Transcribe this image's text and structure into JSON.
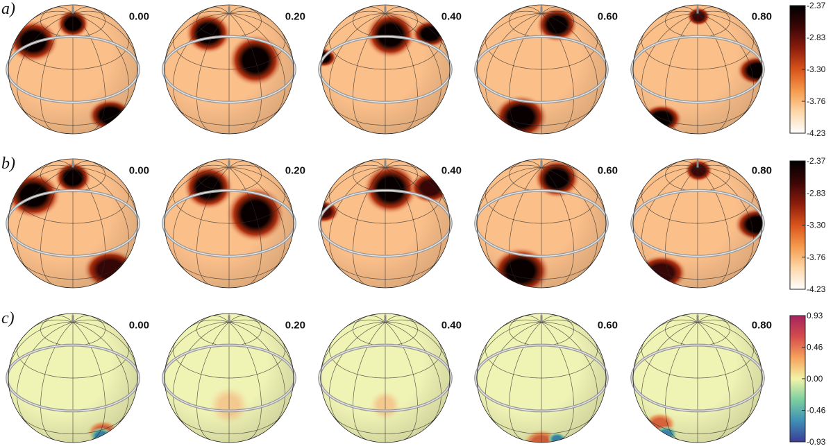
{
  "rows": [
    {
      "label": "a)",
      "kind": "temperature",
      "colorbar": {
        "max_label": "-2.37",
        "ticks": [
          "-2.83",
          "-3.30",
          "-3.76"
        ],
        "min_label": "-4.23",
        "colors": [
          "#ffffff",
          "#fdd7a8",
          "#f59a4c",
          "#d9541a",
          "#8c1c0c",
          "#3a0606",
          "#000000"
        ]
      },
      "globes": [
        {
          "phase": "0.00",
          "spots": [
            {
              "lon": -60,
              "lat": 45,
              "r": 22,
              "k": 1.0
            },
            {
              "lon": 40,
              "lat": -25,
              "r": 20,
              "k": 1.0
            },
            {
              "lon": 0,
              "lat": 75,
              "r": 14,
              "k": 1.0
            }
          ]
        },
        {
          "phase": "0.20",
          "spots": [
            {
              "lon": -40,
              "lat": 60,
              "r": 20,
              "k": 1.0
            },
            {
              "lon": 30,
              "lat": 35,
              "r": 24,
              "k": 1.0
            }
          ]
        },
        {
          "phase": "0.40",
          "spots": [
            {
              "lon": 10,
              "lat": 62,
              "r": 22,
              "k": 1.0
            },
            {
              "lon": 80,
              "lat": 45,
              "r": 16,
              "k": 1.0
            },
            {
              "lon": -85,
              "lat": 15,
              "r": 12,
              "k": 1.0
            }
          ]
        },
        {
          "phase": "0.60",
          "spots": [
            {
              "lon": -20,
              "lat": -20,
              "r": 24,
              "k": 1.0
            },
            {
              "lon": 45,
              "lat": 70,
              "r": 18,
              "k": 1.0
            }
          ]
        },
        {
          "phase": "0.80",
          "spots": [
            {
              "lon": 70,
              "lat": 10,
              "r": 18,
              "k": 1.0
            },
            {
              "lon": -40,
              "lat": -30,
              "r": 18,
              "k": 1.0
            },
            {
              "lon": 10,
              "lat": 85,
              "r": 10,
              "k": 0.8
            }
          ]
        }
      ]
    },
    {
      "label": "b)",
      "kind": "temperature",
      "colorbar": {
        "max_label": "-2.37",
        "ticks": [
          "-2.83",
          "-3.30",
          "-3.76"
        ],
        "min_label": "-4.23",
        "colors": [
          "#ffffff",
          "#fdd7a8",
          "#f59a4c",
          "#d9541a",
          "#8c1c0c",
          "#3a0606",
          "#000000"
        ]
      },
      "globes": [
        {
          "phase": "0.00",
          "spots": [
            {
              "lon": -60,
              "lat": 45,
              "r": 24,
              "k": 1.0
            },
            {
              "lon": 40,
              "lat": -25,
              "r": 24,
              "k": 0.85
            },
            {
              "lon": 0,
              "lat": 75,
              "r": 16,
              "k": 1.0
            }
          ]
        },
        {
          "phase": "0.20",
          "spots": [
            {
              "lon": -40,
              "lat": 60,
              "r": 22,
              "k": 1.0
            },
            {
              "lon": 30,
              "lat": 35,
              "r": 26,
              "k": 1.0
            }
          ]
        },
        {
          "phase": "0.40",
          "spots": [
            {
              "lon": 10,
              "lat": 62,
              "r": 24,
              "k": 1.0
            },
            {
              "lon": 80,
              "lat": 45,
              "r": 18,
              "k": 0.9
            },
            {
              "lon": -85,
              "lat": 15,
              "r": 14,
              "k": 0.9
            }
          ]
        },
        {
          "phase": "0.60",
          "spots": [
            {
              "lon": -20,
              "lat": -20,
              "r": 26,
              "k": 1.0
            },
            {
              "lon": 45,
              "lat": 70,
              "r": 20,
              "k": 1.0
            }
          ]
        },
        {
          "phase": "0.80",
          "spots": [
            {
              "lon": 70,
              "lat": 10,
              "r": 20,
              "k": 1.0
            },
            {
              "lon": -40,
              "lat": -30,
              "r": 22,
              "k": 0.9
            },
            {
              "lon": 10,
              "lat": 85,
              "r": 12,
              "k": 0.8
            }
          ]
        }
      ]
    },
    {
      "label": "c)",
      "kind": "difference",
      "colorbar": {
        "max_label": "0.93",
        "ticks": [
          "0.46",
          "0.00",
          "-0.46"
        ],
        "min_label": "-0.93",
        "colors": [
          "#3b3d96",
          "#3f8fb6",
          "#7ccfa0",
          "#f2f4a8",
          "#f6a25c",
          "#d54c4c",
          "#a4235f"
        ]
      },
      "globes": [
        {
          "phase": "0.00",
          "spots": [
            {
              "lon": 35,
              "lat": -35,
              "r": 14,
              "k": 0.5
            },
            {
              "lon": 50,
              "lat": -55,
              "r": 10,
              "k": -0.5
            }
          ]
        },
        {
          "phase": "0.20",
          "spots": [
            {
              "lon": 0,
              "lat": 5,
              "r": 18,
              "k": 0.12
            }
          ]
        },
        {
          "phase": "0.40",
          "spots": [
            {
              "lon": 0,
              "lat": 5,
              "r": 14,
              "k": 0.18
            }
          ]
        },
        {
          "phase": "0.60",
          "spots": [
            {
              "lon": 0,
              "lat": -55,
              "r": 16,
              "k": 0.35
            },
            {
              "lon": 20,
              "lat": -45,
              "r": 8,
              "k": -0.2
            }
          ]
        },
        {
          "phase": "0.80",
          "spots": [
            {
              "lon": -40,
              "lat": -25,
              "r": 14,
              "k": 0.45
            },
            {
              "lon": -50,
              "lat": -50,
              "r": 10,
              "k": -0.5
            }
          ]
        }
      ]
    }
  ]
}
